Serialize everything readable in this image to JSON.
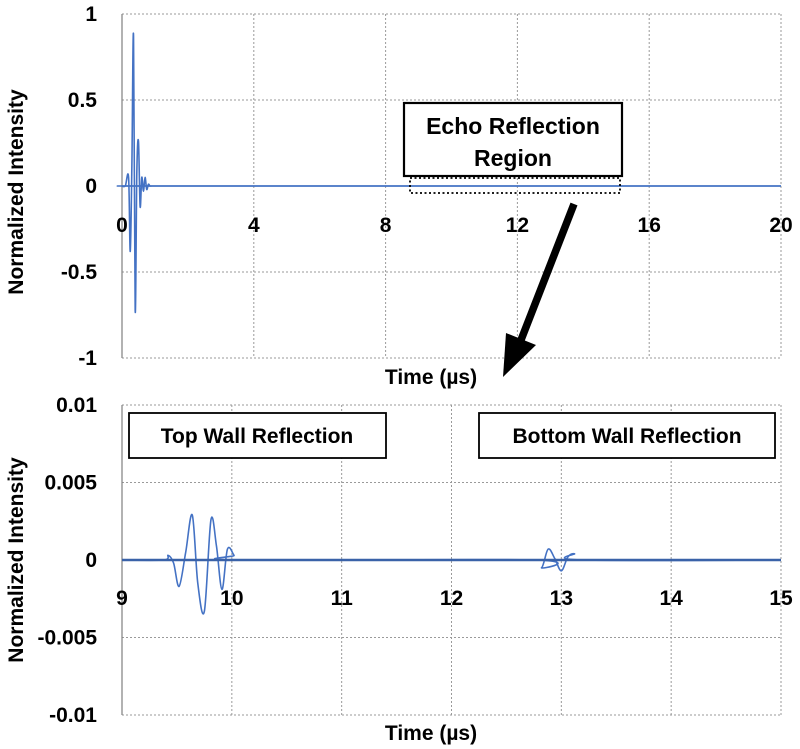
{
  "chart_data": [
    {
      "type": "line",
      "xlabel": "Time (µs)",
      "ylabel": "Normalized Intensity",
      "xlim": [
        0,
        20
      ],
      "ylim": [
        -1,
        1
      ],
      "x_ticks": [
        0,
        4,
        8,
        12,
        16,
        20
      ],
      "y_ticks": [
        1,
        0.5,
        0,
        -0.5,
        -1
      ],
      "x_tick_labels": [
        "0",
        "4",
        "8",
        "12",
        "16",
        "20"
      ],
      "y_tick_labels": [
        "1",
        "0.5",
        "0",
        "-0.5",
        "-1"
      ],
      "grid": true,
      "series_color": "#4472c4",
      "series": [
        {
          "x": [
            0,
            0.1,
            0.2,
            0.25,
            0.3,
            0.35,
            0.4,
            0.45,
            0.5,
            0.55,
            0.6,
            0.65,
            0.7,
            0.75,
            0.8,
            0.85,
            0.9,
            0.95,
            1.0,
            1.1,
            1.3,
            20
          ],
          "y": [
            0,
            0,
            0.05,
            -0.38,
            0.12,
            0.87,
            -0.72,
            0.08,
            0.26,
            -0.12,
            0.05,
            -0.03,
            0.05,
            -0.02,
            0.01,
            0,
            0,
            0,
            0,
            0,
            0,
            0
          ]
        }
      ],
      "annotations": [
        {
          "text": "Echo Reflection",
          "text2": "Region",
          "region": [
            8.8,
            15.1
          ]
        }
      ]
    },
    {
      "type": "line",
      "xlabel": "Time (µs)",
      "ylabel": "Normalized Intensity",
      "xlim": [
        9,
        15
      ],
      "ylim": [
        -0.01,
        0.01
      ],
      "x_ticks": [
        9,
        10,
        11,
        12,
        13,
        14,
        15
      ],
      "y_ticks": [
        0.01,
        0.005,
        0,
        -0.005,
        -0.01
      ],
      "x_tick_labels": [
        "9",
        "10",
        "11",
        "12",
        "13",
        "14",
        "15"
      ],
      "y_tick_labels": [
        "0.01",
        "0.005",
        "0",
        "-0.005",
        "-0.01"
      ],
      "grid": true,
      "series_color": "#4472c4",
      "series": [
        {
          "x": [
            9,
            9.38,
            9.42,
            9.47,
            9.52,
            9.58,
            9.64,
            9.69,
            9.75,
            9.81,
            9.86,
            9.91,
            9.96,
            10.02,
            10.05,
            12.75,
            12.82,
            12.88,
            12.94,
            13.0,
            13.06,
            13.12,
            13.18,
            15
          ],
          "y": [
            0,
            0,
            0.0003,
            -0.0002,
            -0.0017,
            0.0005,
            0.0029,
            -0.0015,
            -0.0033,
            0.0026,
            0.0009,
            -0.0019,
            0.0007,
            0.0003,
            0,
            0,
            -0.0005,
            0.0007,
            0.0001,
            -0.0007,
            0.0002,
            0.0004,
            0,
            0
          ]
        }
      ],
      "annotations": [
        {
          "text": "Top Wall Reflection"
        },
        {
          "text": "Bottom Wall Reflection"
        }
      ]
    }
  ]
}
